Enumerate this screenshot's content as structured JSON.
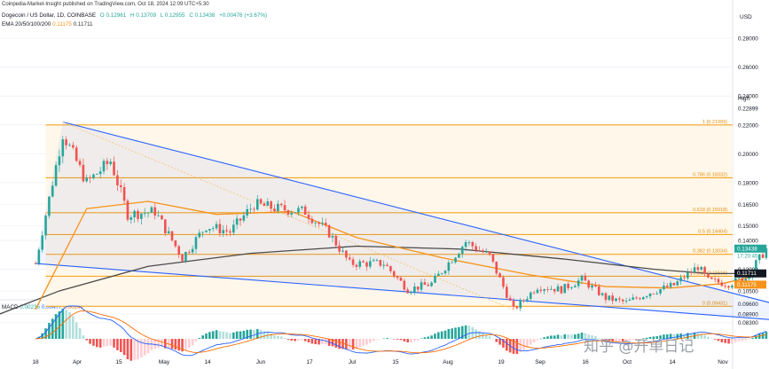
{
  "header": {
    "published": "Coinpedia-Market-Insight published on TradingView.com, Oct 18, 2024 12:09 UTC+5:30",
    "symbol": "Dogecoin / US Dollar, 1D, COINBASE",
    "open": "O 0.12961",
    "high": "H 0.13709",
    "low": "L 0.12955",
    "close": "C 0.13438",
    "change": "+0.00476 (+3.67%)",
    "ema_label": "EMA 20/50/100/200",
    "ema_value1": "0.11175",
    "ema_value2": "0.11711",
    "currency": "USD"
  },
  "macd": {
    "label": "MACD",
    "v1": "0.00236",
    "v2": "0.00477",
    "v3": "0.00241"
  },
  "watermark": "知乎 @开单日记",
  "colors": {
    "up": "#26a69a",
    "down": "#ef5350",
    "fib": "#f5a623",
    "channel": "#2962ff",
    "ema_orange": "#f7931a",
    "ema_dark": "#4a4a4a",
    "macd_line": "#2962ff",
    "signal_line": "#ff6d00"
  },
  "chart_data": {
    "type": "candlestick",
    "y_axis_ticks": [
      "0.28000",
      "0.26000",
      "0.24000",
      "0.22000",
      "0.20000",
      "0.18000",
      "0.16500",
      "0.15000",
      "0.14000",
      "0.12000",
      "0.10500",
      "0.09600",
      "0.08900",
      "0.08300"
    ],
    "x_axis_ticks": [
      "18",
      "Apr",
      "15",
      "May",
      "14",
      "Jun",
      "17",
      "Jul",
      "15",
      "Aug",
      "19",
      "Sep",
      "16",
      "Oct",
      "14",
      "Nov"
    ],
    "price_badges": {
      "high_label": "High",
      "high_value": "0.22899",
      "last_value": "0.13438",
      "countdown": "17:20:45",
      "ema1": "0.11711",
      "ema2": "0.11175"
    },
    "fib_levels": [
      {
        "label": "1 (0.21999)",
        "value": 0.21999
      },
      {
        "label": "0.786 (0.18332)",
        "value": 0.18332
      },
      {
        "label": "0.618 (0.15918)",
        "value": 0.15918
      },
      {
        "label": "0.5 (0.14404)",
        "value": 0.14404
      },
      {
        "label": "0.382 (0.13034)",
        "value": 0.13034
      },
      {
        "label": "0.236 (0.11516)",
        "value": 0.11516
      },
      {
        "label": "0 (0.09431)",
        "value": 0.09431
      }
    ],
    "close_path": [
      [
        "2024-03-18",
        0.124
      ],
      [
        "2024-03-26",
        0.214
      ],
      [
        "2024-04-02",
        0.18
      ],
      [
        "2024-04-09",
        0.195
      ],
      [
        "2024-04-14",
        0.158
      ],
      [
        "2024-04-22",
        0.16
      ],
      [
        "2024-04-30",
        0.128
      ],
      [
        "2024-05-07",
        0.15
      ],
      [
        "2024-05-14",
        0.146
      ],
      [
        "2024-05-21",
        0.165
      ],
      [
        "2024-05-28",
        0.162
      ],
      [
        "2024-06-05",
        0.16
      ],
      [
        "2024-06-12",
        0.145
      ],
      [
        "2024-06-18",
        0.124
      ],
      [
        "2024-06-28",
        0.124
      ],
      [
        "2024-07-05",
        0.106
      ],
      [
        "2024-07-12",
        0.11
      ],
      [
        "2024-07-22",
        0.139
      ],
      [
        "2024-07-29",
        0.129
      ],
      [
        "2024-08-05",
        0.092
      ],
      [
        "2024-08-12",
        0.108
      ],
      [
        "2024-08-19",
        0.106
      ],
      [
        "2024-08-25",
        0.113
      ],
      [
        "2024-09-01",
        0.1
      ],
      [
        "2024-09-07",
        0.097
      ],
      [
        "2024-09-14",
        0.104
      ],
      [
        "2024-09-21",
        0.109
      ],
      [
        "2024-09-28",
        0.122
      ],
      [
        "2024-10-01",
        0.112
      ],
      [
        "2024-10-07",
        0.11
      ],
      [
        "2024-10-12",
        0.114
      ],
      [
        "2024-10-18",
        0.134
      ]
    ],
    "ema_orange": [
      [
        "2024-03-18",
        0.092
      ],
      [
        "2024-04-02",
        0.162
      ],
      [
        "2024-04-20",
        0.167
      ],
      [
        "2024-05-10",
        0.158
      ],
      [
        "2024-06-01",
        0.16
      ],
      [
        "2024-06-20",
        0.142
      ],
      [
        "2024-07-15",
        0.128
      ],
      [
        "2024-08-10",
        0.116
      ],
      [
        "2024-09-01",
        0.108
      ],
      [
        "2024-09-20",
        0.107
      ],
      [
        "2024-10-05",
        0.11
      ],
      [
        "2024-10-18",
        0.117
      ]
    ],
    "ema_dark": [
      [
        "2024-03-01",
        0.083
      ],
      [
        "2024-03-25",
        0.105
      ],
      [
        "2024-04-20",
        0.122
      ],
      [
        "2024-05-20",
        0.131
      ],
      [
        "2024-06-20",
        0.136
      ],
      [
        "2024-07-20",
        0.134
      ],
      [
        "2024-08-20",
        0.127
      ],
      [
        "2024-09-15",
        0.12
      ],
      [
        "2024-10-01",
        0.117
      ],
      [
        "2024-10-18",
        0.117
      ]
    ],
    "channel_upper": [
      [
        "2024-03-26",
        0.222
      ],
      [
        "2024-11-01",
        0.089
      ]
    ],
    "channel_lower": [
      [
        "2024-03-18",
        0.124
      ],
      [
        "2024-10-31",
        0.083
      ]
    ]
  }
}
